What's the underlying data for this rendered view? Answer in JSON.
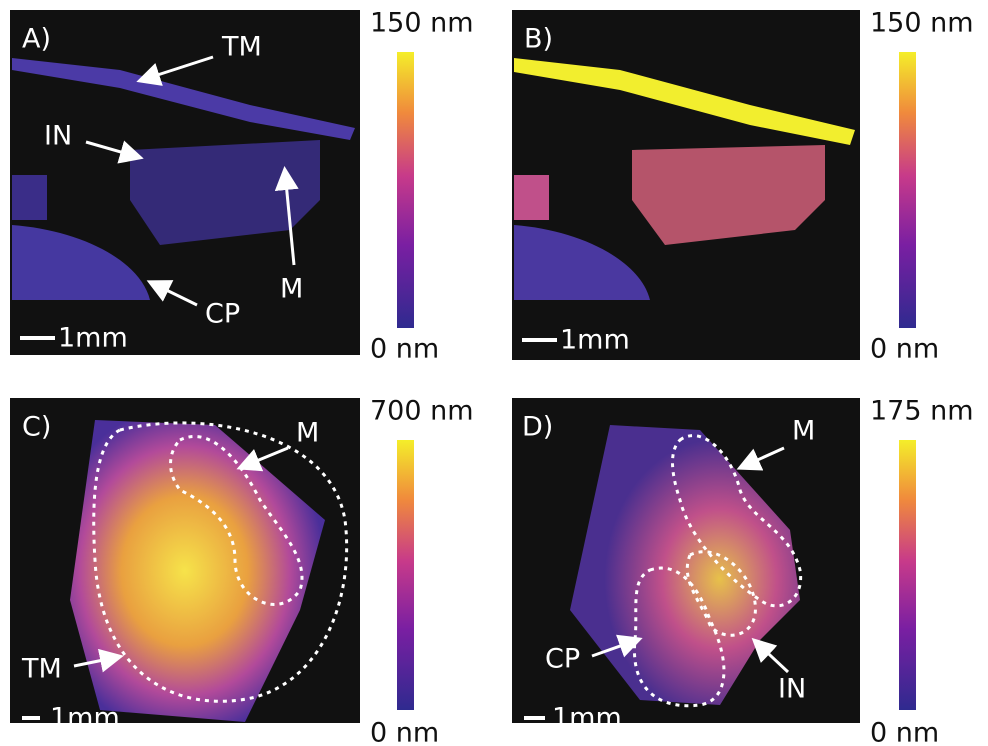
{
  "panels": [
    {
      "label": "A)",
      "annotations": [
        "TM",
        "IN",
        "M",
        "CP"
      ],
      "scale_bar": "1mm",
      "colorbar": {
        "max": "150 nm",
        "min": "0 nm"
      }
    },
    {
      "label": "B)",
      "scale_bar": "1mm",
      "colorbar": {
        "max": "150 nm",
        "min": "0 nm"
      }
    },
    {
      "label": "C)",
      "annotations": [
        "M",
        "TM"
      ],
      "scale_bar": "1mm",
      "colorbar": {
        "max": "700 nm",
        "min": "0 nm"
      }
    },
    {
      "label": "D)",
      "annotations": [
        "M",
        "CP",
        "IN"
      ],
      "scale_bar": "1mm",
      "colorbar": {
        "max": "175 nm",
        "min": "0 nm"
      }
    }
  ]
}
